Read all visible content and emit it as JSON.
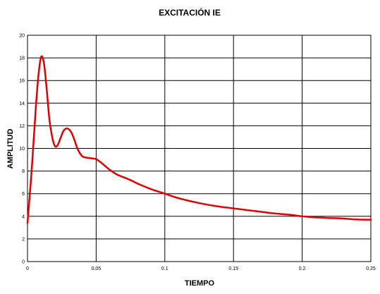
{
  "chart_data": {
    "type": "line",
    "title": "EXCITACIÓN IE",
    "xlabel": "TIEMPO",
    "ylabel": "AMPLITUD",
    "xlim": [
      0,
      0.25
    ],
    "ylim": [
      0,
      20
    ],
    "grid": true,
    "x_ticks": [
      "0",
      "0.05",
      "0.1",
      "0.15",
      "0.2",
      "0.25"
    ],
    "y_ticks": [
      "0",
      "2",
      "4",
      "6",
      "8",
      "10",
      "12",
      "14",
      "16",
      "18",
      "20"
    ],
    "line_color": "#e00000",
    "series": [
      {
        "x": [
          0,
          0.003,
          0.006,
          0.008,
          0.01,
          0.012,
          0.014,
          0.016,
          0.018,
          0.02,
          0.022,
          0.024,
          0.026,
          0.028,
          0.03,
          0.032,
          0.034,
          0.036,
          0.038,
          0.04,
          0.042,
          0.045,
          0.048,
          0.05,
          0.053,
          0.056,
          0.06,
          0.065,
          0.07,
          0.075,
          0.08,
          0.09,
          0.1,
          0.11,
          0.12,
          0.13,
          0.14,
          0.15,
          0.16,
          0.17,
          0.18,
          0.19,
          0.2,
          0.21,
          0.22,
          0.23,
          0.24,
          0.25
        ],
        "y": [
          3.4,
          8.0,
          13.5,
          16.5,
          18.1,
          17.5,
          15.2,
          12.5,
          11.0,
          10.2,
          10.3,
          10.9,
          11.5,
          11.75,
          11.7,
          11.4,
          10.8,
          10.1,
          9.6,
          9.3,
          9.2,
          9.15,
          9.1,
          9.05,
          8.8,
          8.5,
          8.1,
          7.7,
          7.45,
          7.2,
          6.9,
          6.4,
          6.0,
          5.6,
          5.3,
          5.05,
          4.85,
          4.7,
          4.55,
          4.4,
          4.25,
          4.15,
          4.0,
          3.9,
          3.85,
          3.8,
          3.72,
          3.7
        ]
      }
    ]
  }
}
